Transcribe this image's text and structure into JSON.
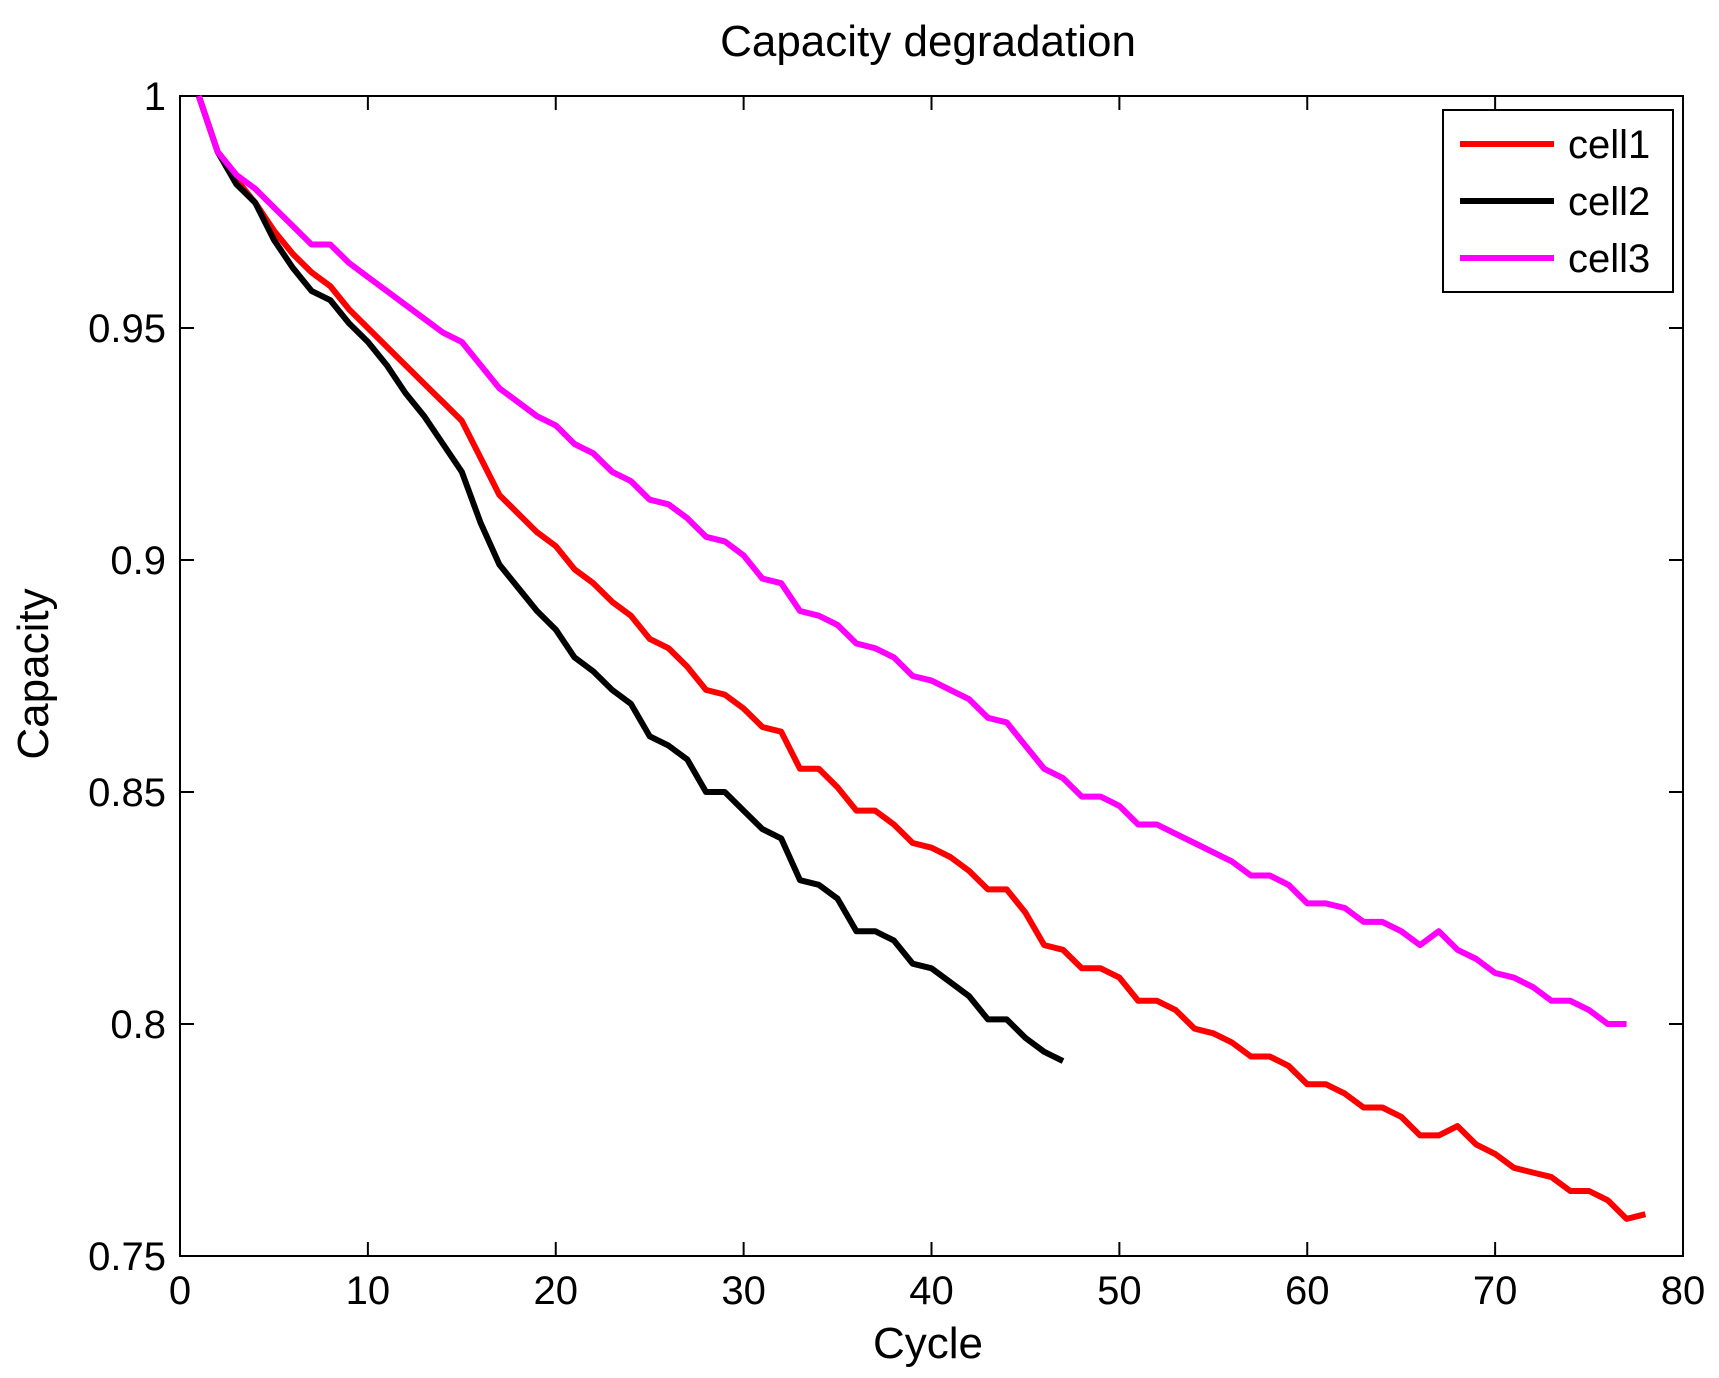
{
  "chart_data": {
    "type": "line",
    "title": "Capacity degradation",
    "xlabel": "Cycle",
    "ylabel": "Capacity",
    "xlim": [
      0,
      80
    ],
    "ylim": [
      0.75,
      1
    ],
    "xticks": [
      0,
      10,
      20,
      30,
      40,
      50,
      60,
      70,
      80
    ],
    "xtick_labels": [
      "0",
      "10",
      "20",
      "30",
      "40",
      "50",
      "60",
      "70",
      "80"
    ],
    "yticks": [
      0.75,
      0.8,
      0.85,
      0.9,
      0.95,
      1
    ],
    "ytick_labels": [
      "0.75",
      "0.8",
      "0.85",
      "0.9",
      "0.95",
      "1"
    ],
    "grid": false,
    "legend_position": "top-right",
    "series": [
      {
        "name": "cell1",
        "color": "#ff0000",
        "points": [
          [
            1,
            1.0
          ],
          [
            2,
            0.988
          ],
          [
            3,
            0.982
          ],
          [
            4,
            0.977
          ],
          [
            5,
            0.971
          ],
          [
            6,
            0.966
          ],
          [
            7,
            0.962
          ],
          [
            8,
            0.959
          ],
          [
            9,
            0.954
          ],
          [
            10,
            0.95
          ],
          [
            11,
            0.946
          ],
          [
            12,
            0.942
          ],
          [
            13,
            0.938
          ],
          [
            14,
            0.934
          ],
          [
            15,
            0.93
          ],
          [
            16,
            0.922
          ],
          [
            17,
            0.914
          ],
          [
            18,
            0.91
          ],
          [
            19,
            0.906
          ],
          [
            20,
            0.903
          ],
          [
            21,
            0.898
          ],
          [
            22,
            0.895
          ],
          [
            23,
            0.891
          ],
          [
            24,
            0.888
          ],
          [
            25,
            0.883
          ],
          [
            26,
            0.881
          ],
          [
            27,
            0.877
          ],
          [
            28,
            0.872
          ],
          [
            29,
            0.871
          ],
          [
            30,
            0.868
          ],
          [
            31,
            0.864
          ],
          [
            32,
            0.863
          ],
          [
            33,
            0.855
          ],
          [
            34,
            0.855
          ],
          [
            35,
            0.851
          ],
          [
            36,
            0.846
          ],
          [
            37,
            0.846
          ],
          [
            38,
            0.843
          ],
          [
            39,
            0.839
          ],
          [
            40,
            0.838
          ],
          [
            41,
            0.836
          ],
          [
            42,
            0.833
          ],
          [
            43,
            0.829
          ],
          [
            44,
            0.829
          ],
          [
            45,
            0.824
          ],
          [
            46,
            0.817
          ],
          [
            47,
            0.816
          ],
          [
            48,
            0.812
          ],
          [
            49,
            0.812
          ],
          [
            50,
            0.81
          ],
          [
            51,
            0.805
          ],
          [
            52,
            0.805
          ],
          [
            53,
            0.803
          ],
          [
            54,
            0.799
          ],
          [
            55,
            0.798
          ],
          [
            56,
            0.796
          ],
          [
            57,
            0.793
          ],
          [
            58,
            0.793
          ],
          [
            59,
            0.791
          ],
          [
            60,
            0.787
          ],
          [
            61,
            0.787
          ],
          [
            62,
            0.785
          ],
          [
            63,
            0.782
          ],
          [
            64,
            0.782
          ],
          [
            65,
            0.78
          ],
          [
            66,
            0.776
          ],
          [
            67,
            0.776
          ],
          [
            68,
            0.778
          ],
          [
            69,
            0.774
          ],
          [
            70,
            0.772
          ],
          [
            71,
            0.769
          ],
          [
            72,
            0.768
          ],
          [
            73,
            0.767
          ],
          [
            74,
            0.764
          ],
          [
            75,
            0.764
          ],
          [
            76,
            0.762
          ],
          [
            77,
            0.758
          ],
          [
            78,
            0.759
          ]
        ]
      },
      {
        "name": "cell2",
        "color": "#000000",
        "points": [
          [
            1,
            1.0
          ],
          [
            2,
            0.988
          ],
          [
            3,
            0.981
          ],
          [
            4,
            0.977
          ],
          [
            5,
            0.969
          ],
          [
            6,
            0.963
          ],
          [
            7,
            0.958
          ],
          [
            8,
            0.956
          ],
          [
            9,
            0.951
          ],
          [
            10,
            0.947
          ],
          [
            11,
            0.942
          ],
          [
            12,
            0.936
          ],
          [
            13,
            0.931
          ],
          [
            14,
            0.925
          ],
          [
            15,
            0.919
          ],
          [
            16,
            0.908
          ],
          [
            17,
            0.899
          ],
          [
            18,
            0.894
          ],
          [
            19,
            0.889
          ],
          [
            20,
            0.885
          ],
          [
            21,
            0.879
          ],
          [
            22,
            0.876
          ],
          [
            23,
            0.872
          ],
          [
            24,
            0.869
          ],
          [
            25,
            0.862
          ],
          [
            26,
            0.86
          ],
          [
            27,
            0.857
          ],
          [
            28,
            0.85
          ],
          [
            29,
            0.85
          ],
          [
            30,
            0.846
          ],
          [
            31,
            0.842
          ],
          [
            32,
            0.84
          ],
          [
            33,
            0.831
          ],
          [
            34,
            0.83
          ],
          [
            35,
            0.827
          ],
          [
            36,
            0.82
          ],
          [
            37,
            0.82
          ],
          [
            38,
            0.818
          ],
          [
            39,
            0.813
          ],
          [
            40,
            0.812
          ],
          [
            41,
            0.809
          ],
          [
            42,
            0.806
          ],
          [
            43,
            0.801
          ],
          [
            44,
            0.801
          ],
          [
            45,
            0.797
          ],
          [
            46,
            0.794
          ],
          [
            47,
            0.792
          ]
        ]
      },
      {
        "name": "cell3",
        "color": "#ff00ff",
        "points": [
          [
            1,
            1.0
          ],
          [
            2,
            0.988
          ],
          [
            3,
            0.983
          ],
          [
            4,
            0.98
          ],
          [
            5,
            0.976
          ],
          [
            6,
            0.972
          ],
          [
            7,
            0.968
          ],
          [
            8,
            0.968
          ],
          [
            9,
            0.964
          ],
          [
            10,
            0.961
          ],
          [
            11,
            0.958
          ],
          [
            12,
            0.955
          ],
          [
            13,
            0.952
          ],
          [
            14,
            0.949
          ],
          [
            15,
            0.947
          ],
          [
            16,
            0.942
          ],
          [
            17,
            0.937
          ],
          [
            18,
            0.934
          ],
          [
            19,
            0.931
          ],
          [
            20,
            0.929
          ],
          [
            21,
            0.925
          ],
          [
            22,
            0.923
          ],
          [
            23,
            0.919
          ],
          [
            24,
            0.917
          ],
          [
            25,
            0.913
          ],
          [
            26,
            0.912
          ],
          [
            27,
            0.909
          ],
          [
            28,
            0.905
          ],
          [
            29,
            0.904
          ],
          [
            30,
            0.901
          ],
          [
            31,
            0.896
          ],
          [
            32,
            0.895
          ],
          [
            33,
            0.889
          ],
          [
            34,
            0.888
          ],
          [
            35,
            0.886
          ],
          [
            36,
            0.882
          ],
          [
            37,
            0.881
          ],
          [
            38,
            0.879
          ],
          [
            39,
            0.875
          ],
          [
            40,
            0.874
          ],
          [
            41,
            0.872
          ],
          [
            42,
            0.87
          ],
          [
            43,
            0.866
          ],
          [
            44,
            0.865
          ],
          [
            45,
            0.86
          ],
          [
            46,
            0.855
          ],
          [
            47,
            0.853
          ],
          [
            48,
            0.849
          ],
          [
            49,
            0.849
          ],
          [
            50,
            0.847
          ],
          [
            51,
            0.843
          ],
          [
            52,
            0.843
          ],
          [
            53,
            0.841
          ],
          [
            54,
            0.839
          ],
          [
            55,
            0.837
          ],
          [
            56,
            0.835
          ],
          [
            57,
            0.832
          ],
          [
            58,
            0.832
          ],
          [
            59,
            0.83
          ],
          [
            60,
            0.826
          ],
          [
            61,
            0.826
          ],
          [
            62,
            0.825
          ],
          [
            63,
            0.822
          ],
          [
            64,
            0.822
          ],
          [
            65,
            0.82
          ],
          [
            66,
            0.817
          ],
          [
            67,
            0.82
          ],
          [
            68,
            0.816
          ],
          [
            69,
            0.814
          ],
          [
            70,
            0.811
          ],
          [
            71,
            0.81
          ],
          [
            72,
            0.808
          ],
          [
            73,
            0.805
          ],
          [
            74,
            0.805
          ],
          [
            75,
            0.803
          ],
          [
            76,
            0.8
          ],
          [
            77,
            0.8
          ]
        ]
      }
    ]
  }
}
